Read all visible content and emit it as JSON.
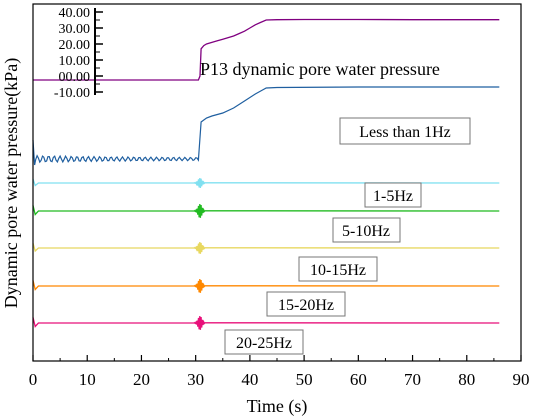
{
  "chart_data": {
    "type": "line",
    "title": "P13 dynamic pore water pressure",
    "xlabel": "Time (s)",
    "ylabel": "Dynamic pore water pressure(kPa)",
    "xlim": [
      0,
      90
    ],
    "x_ticks": [
      "0",
      "10",
      "20",
      "30",
      "40",
      "50",
      "60",
      "70",
      "80",
      "90"
    ],
    "inset_y_ticks": [
      "40.00",
      "30.00",
      "20.00",
      "10.00",
      "00.00",
      "-10.00"
    ],
    "inset_ylim": [
      -10,
      40
    ],
    "grid": false,
    "series": [
      {
        "label": "",
        "color": "#800080",
        "x": [
          0,
          28,
          30.5,
          30.8,
          31,
          31.5,
          32,
          33,
          34,
          35,
          36,
          37,
          38,
          39,
          40,
          41,
          42,
          43,
          45,
          50,
          60,
          70,
          80,
          86
        ],
        "y": [
          -2.5,
          -2.5,
          -2.5,
          0,
          17,
          19,
          20,
          21,
          22,
          23,
          24,
          25,
          26.5,
          28,
          30,
          32,
          33.5,
          35,
          35.2,
          35.3,
          35.3,
          35.2,
          35.2,
          35.2
        ]
      },
      {
        "label": "Less than 1Hz",
        "color": "#1f5fa0",
        "pattern": "offset lower-frequency component: small oscillation, jump at ~30.5 s, rises to plateau after ~43 s"
      },
      {
        "label": "1-5Hz",
        "color": "#80e0f0"
      },
      {
        "label": "5-10Hz",
        "color": "#22bb22"
      },
      {
        "label": "10-15Hz",
        "color": "#e8d860"
      },
      {
        "label": "15-20Hz",
        "color": "#ff8800"
      },
      {
        "label": "20-25Hz",
        "color": "#e8107a"
      }
    ],
    "annotations": [
      "Less than 1Hz",
      "1-5Hz",
      "5-10Hz",
      "10-15Hz",
      "15-20Hz",
      "20-25Hz"
    ]
  }
}
